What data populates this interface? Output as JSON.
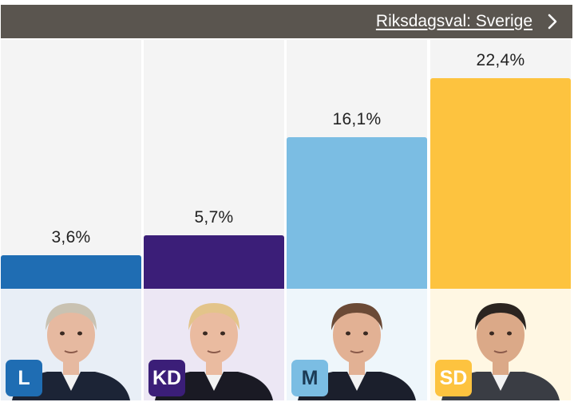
{
  "header": {
    "link_label": "Riksdagsval: Sverige"
  },
  "chart_data": {
    "type": "bar",
    "categories": [
      "L",
      "KD",
      "M",
      "SD"
    ],
    "values": [
      3.6,
      5.7,
      16.1,
      22.4
    ],
    "value_labels": [
      "3,6%",
      "5,7%",
      "16,1%",
      "22,4%"
    ],
    "unit": "%",
    "ylim": [
      0,
      26.5
    ],
    "grid": false,
    "colors": [
      "#1f6db3",
      "#3b1e78",
      "#7bbde3",
      "#fdc33f"
    ]
  },
  "parties": [
    {
      "abbr": "L",
      "color": "#1f6db3",
      "bg": "#e8eef6",
      "hair": "#c9c2b2",
      "skin": "#e6b9a0",
      "suit": "#1c2436",
      "badge_text": "#ffffff"
    },
    {
      "abbr": "KD",
      "color": "#3b1e78",
      "bg": "#ece7f4",
      "hair": "#e3c48a",
      "skin": "#eabba0",
      "suit": "#1a1a24",
      "badge_text": "#ffffff"
    },
    {
      "abbr": "M",
      "color": "#7bbde3",
      "bg": "#eef6fb",
      "hair": "#6b4a36",
      "skin": "#e2b194",
      "suit": "#1b1f2c",
      "badge_text": "#1b3a55"
    },
    {
      "abbr": "SD",
      "color": "#fdc33f",
      "bg": "#fff7e3",
      "hair": "#2b2420",
      "skin": "#dba988",
      "suit": "#3a3d44",
      "badge_text": "#ffffff"
    }
  ]
}
